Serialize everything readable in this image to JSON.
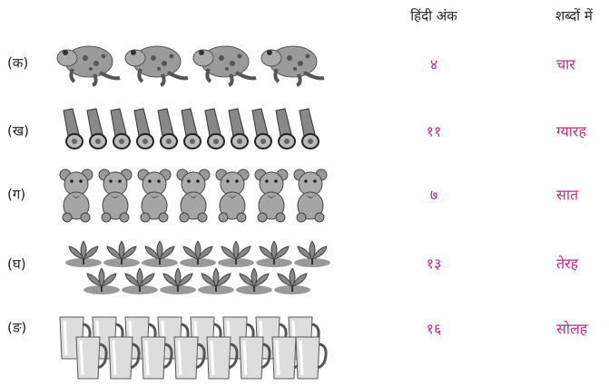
{
  "header": {
    "numeral_heading": "हिंदी अंक",
    "words_heading": "शब्दों में"
  },
  "rows": [
    {
      "label": "(क)",
      "numeral": "४",
      "word": "चार"
    },
    {
      "label": "(ख)",
      "numeral": "११",
      "word": "ग्यारह"
    },
    {
      "label": "(ग)",
      "numeral": "७",
      "word": "सात"
    },
    {
      "label": "(घ)",
      "numeral": "१३",
      "word": "तेरह"
    },
    {
      "label": "(ङ)",
      "numeral": "१६",
      "word": "सोलह"
    }
  ]
}
